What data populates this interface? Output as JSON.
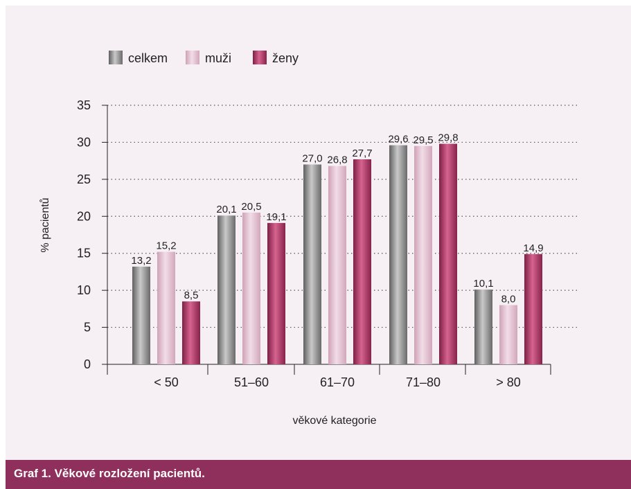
{
  "caption": "Graf 1. Věkové rozložení pacientů.",
  "colors": {
    "panel_bg": "#f6eff3",
    "caption_bg": "#8f2f5b",
    "celkem": "#8a8a8a",
    "muzi": "#e2bccd",
    "zeny": "#a8325f"
  },
  "chart_data": {
    "type": "bar",
    "title": "",
    "xlabel": "věkové kategorie",
    "ylabel": "% pacientů",
    "categories": [
      "< 50",
      "51–60",
      "61–70",
      "71–80",
      "> 80"
    ],
    "series": [
      {
        "name": "celkem",
        "values": [
          13.2,
          20.1,
          27.0,
          29.6,
          10.1
        ],
        "labels": [
          "13,2",
          "20,1",
          "27,0",
          "29,6",
          "10,1"
        ]
      },
      {
        "name": "muži",
        "values": [
          15.2,
          20.5,
          26.8,
          29.5,
          8.0
        ],
        "labels": [
          "15,2",
          "20,5",
          "26,8",
          "29,5",
          "8,0"
        ]
      },
      {
        "name": "ženy",
        "values": [
          8.5,
          19.1,
          27.7,
          29.8,
          14.9
        ],
        "labels": [
          "8,5",
          "19,1",
          "27,7",
          "29,8",
          "14,9"
        ]
      }
    ],
    "ylim": [
      0,
      35
    ],
    "yticks": [
      0,
      5,
      10,
      15,
      20,
      25,
      30,
      35
    ],
    "grid": true,
    "legend_position": "top-left"
  }
}
